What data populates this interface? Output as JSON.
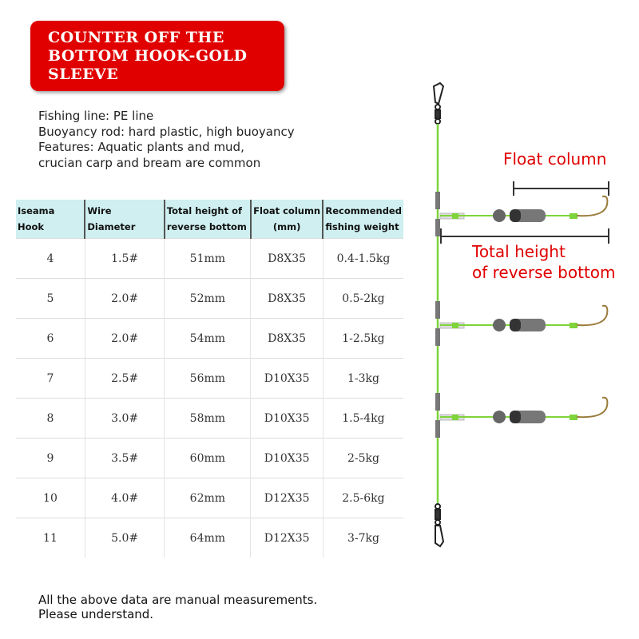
{
  "banner": {
    "title": "COUNTER OFF THE BOTTOM HOOK-GOLD SLEEVE"
  },
  "specs": [
    "Fishing line: PE line",
    "Buoyancy rod: hard plastic, high buoyancy",
    "Features: Aquatic plants and mud,",
    "crucian carp and bream are common"
  ],
  "table": {
    "headers": [
      "Iseama Hook",
      "Wire Diameter",
      "Total height of reverse bottom",
      "Float column (mm)",
      "Recommended fishing weight"
    ],
    "rows": [
      [
        "4",
        "1.5#",
        "51mm",
        "D8X35",
        "0.4-1.5kg"
      ],
      [
        "5",
        "2.0#",
        "52mm",
        "D8X35",
        "0.5-2kg"
      ],
      [
        "6",
        "2.0#",
        "54mm",
        "D8X35",
        "1-2.5kg"
      ],
      [
        "7",
        "2.5#",
        "56mm",
        "D10X35",
        "1-3kg"
      ],
      [
        "8",
        "3.0#",
        "58mm",
        "D10X35",
        "1.5-4kg"
      ],
      [
        "9",
        "3.5#",
        "60mm",
        "D10X35",
        "2-5kg"
      ],
      [
        "10",
        "4.0#",
        "62mm",
        "D12X35",
        "2.5-6kg"
      ],
      [
        "11",
        "5.0#",
        "64mm",
        "D12X35",
        "3-7kg"
      ]
    ]
  },
  "diagram": {
    "float_column_label": "Float column",
    "total_height_label_1": "Total height",
    "total_height_label_2": "of reverse bottom",
    "line_color": "#7ed43a",
    "label_color": "#e00000"
  },
  "note": [
    "All the above data are manual measurements.",
    "Please understand."
  ]
}
